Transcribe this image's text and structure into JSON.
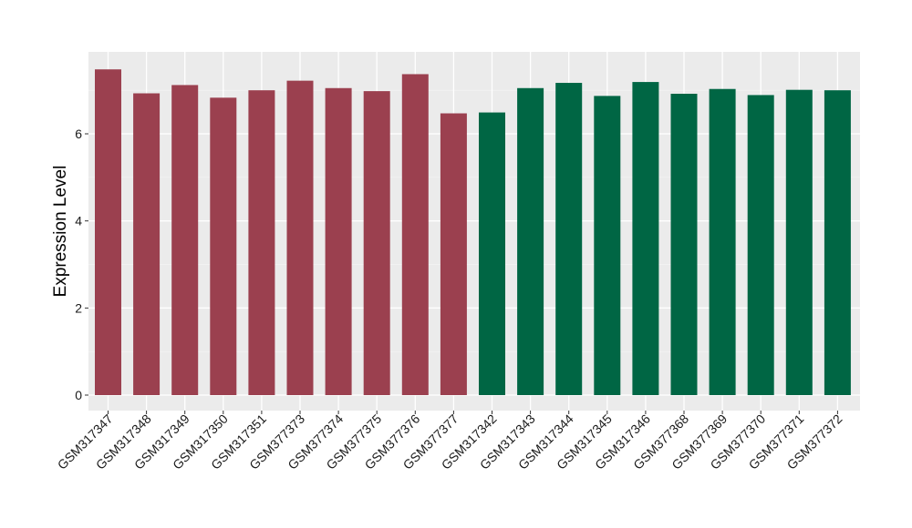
{
  "chart_data": {
    "type": "bar",
    "title": "",
    "xlabel": "",
    "ylabel": "Expression Level",
    "ylim": [
      0,
      7.65
    ],
    "yticks": [
      0,
      2,
      4,
      6
    ],
    "grid": true,
    "legend": "none",
    "panel_background": "#ebebeb",
    "categories": [
      "GSM317347",
      "GSM317348",
      "GSM317349",
      "GSM317350",
      "GSM317351",
      "GSM377373",
      "GSM377374",
      "GSM377375",
      "GSM377376",
      "GSM377377",
      "GSM317342",
      "GSM317343",
      "GSM317344",
      "GSM317345",
      "GSM317346",
      "GSM377368",
      "GSM377369",
      "GSM377370",
      "GSM377371",
      "GSM377372"
    ],
    "values": [
      7.48,
      6.93,
      7.12,
      6.83,
      7.0,
      7.22,
      7.05,
      6.98,
      7.37,
      6.47,
      6.49,
      7.05,
      7.17,
      6.87,
      7.19,
      6.92,
      7.03,
      6.89,
      7.01,
      7.0
    ],
    "bar_colors": [
      "#9b404f",
      "#9b404f",
      "#9b404f",
      "#9b404f",
      "#9b404f",
      "#9b404f",
      "#9b404f",
      "#9b404f",
      "#9b404f",
      "#9b404f",
      "#006644",
      "#006644",
      "#006644",
      "#006644",
      "#006644",
      "#006644",
      "#006644",
      "#006644",
      "#006644",
      "#006644"
    ]
  }
}
